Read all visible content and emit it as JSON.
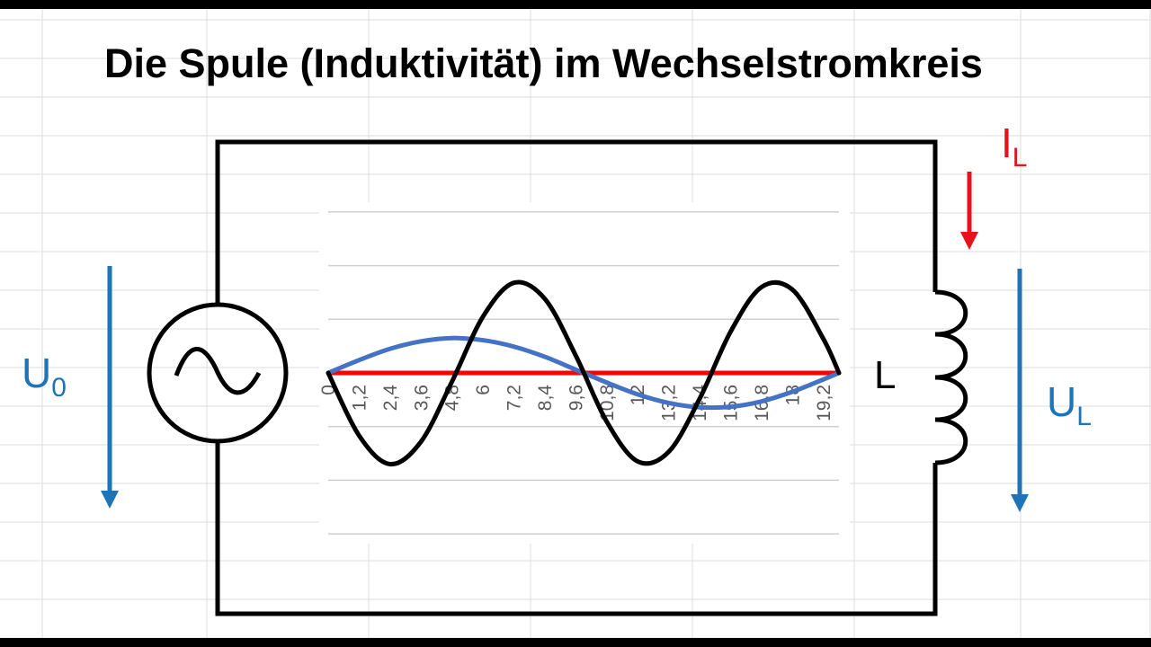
{
  "title": "Die Spule (Induktivität) im Wechselstromkreis",
  "labels": {
    "source_voltage": {
      "main": "U",
      "sub": "0"
    },
    "coil_voltage": {
      "main": "U",
      "sub": "L"
    },
    "coil_current": {
      "main": "I",
      "sub": "L"
    },
    "coil": "L"
  },
  "colors": {
    "voltage_arrow": "#1F73B7",
    "current_arrow": "#E8121A",
    "circuit": "#000000"
  },
  "chart_data": {
    "type": "line",
    "x_tick_labels": [
      "0",
      "1,2",
      "2,4",
      "3,6",
      "4,8",
      "6",
      "7,2",
      "8,4",
      "9,6",
      "10,8",
      "12",
      "13,2",
      "14,4",
      "15,6",
      "16,8",
      "18",
      "19,2"
    ],
    "x": [
      0,
      1.2,
      2.4,
      3.6,
      4.8,
      6,
      7.2,
      8.4,
      9.6,
      10.8,
      12,
      13.2,
      14.4,
      15.6,
      16.8,
      18,
      19.2,
      19.8
    ],
    "ylim": [
      -3,
      3
    ],
    "grid": true,
    "series": [
      {
        "color": "#000000",
        "values": [
          0,
          -1.17,
          -1.7,
          -1.28,
          -0.16,
          1.05,
          1.68,
          1.38,
          0.32,
          -0.91,
          -1.65,
          -1.47,
          -0.48,
          0.77,
          1.6,
          1.55,
          0.63,
          0
        ]
      },
      {
        "color": "#4472C4",
        "values": [
          0,
          0.24,
          0.45,
          0.59,
          0.65,
          0.61,
          0.49,
          0.3,
          0.06,
          -0.18,
          -0.4,
          -0.56,
          -0.64,
          -0.63,
          -0.53,
          -0.35,
          -0.12,
          0
        ]
      },
      {
        "color": "#FF0000",
        "values": [
          0,
          0,
          0,
          0,
          0,
          0,
          0,
          0,
          0,
          0,
          0,
          0,
          0,
          0,
          0,
          0,
          0,
          0
        ]
      }
    ]
  }
}
